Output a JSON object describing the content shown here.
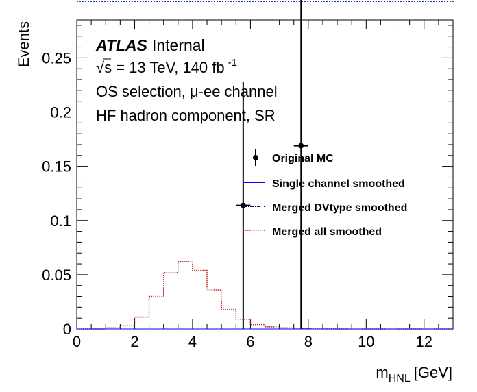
{
  "chart_data": {
    "type": "histogram",
    "xlabel_main": "m",
    "xlabel_sub": "HNL",
    "xlabel_unit": "[GeV]",
    "ylabel": "Events",
    "xlim": [
      0,
      13
    ],
    "ylim": [
      0,
      0.285
    ],
    "xticks": [
      0,
      2,
      4,
      6,
      8,
      10,
      12
    ],
    "yticks": [
      0,
      0.05,
      0.1,
      0.15,
      0.2,
      0.25
    ],
    "ytick_labels": [
      "0",
      "0.05",
      "0.1",
      "0.15",
      "0.2",
      "0.25"
    ],
    "bin_width": 0.5,
    "annotations": {
      "atlas": "ATLAS",
      "internal": "Internal",
      "energy": "√s = 13 TeV, 140 fb",
      "energy_sup": "-1",
      "selection": "OS selection,  μ-ee channel",
      "component": "HF hadron component, SR"
    },
    "legend": {
      "placement": "right",
      "entries": [
        {
          "label": "Original MC",
          "style": "marker"
        },
        {
          "label": "Single channel smoothed",
          "style": "solid",
          "color": "#0000ff"
        },
        {
          "label": "Merged DVtype smoothed",
          "style": "dashdot",
          "color": "#00007f"
        },
        {
          "label": "Merged all smoothed",
          "style": "dotted",
          "color": "#b22222"
        }
      ]
    },
    "series": [
      {
        "name": "Original MC",
        "kind": "points",
        "points": [
          {
            "x": 5.75,
            "y": 0.114,
            "xerr": 0.25,
            "yerr_up": 0.114,
            "yerr_down": 0.114
          },
          {
            "x": 7.75,
            "y": 0.169,
            "xerr": 0.25,
            "yerr_up": 0.169,
            "yerr_down": 0.169
          }
        ]
      },
      {
        "name": "Merged all smoothed",
        "kind": "step",
        "color": "#b22222",
        "bin_edges": [
          0,
          0.5,
          1,
          1.5,
          2,
          2.5,
          3,
          3.5,
          4,
          4.5,
          5,
          5.5,
          6,
          6.5,
          7,
          7.5,
          8,
          8.5,
          9,
          9.5,
          10,
          10.5,
          11,
          11.5,
          12,
          12.5,
          13
        ],
        "values": [
          0,
          0,
          0.001,
          0.003,
          0.011,
          0.03,
          0.052,
          0.062,
          0.054,
          0.036,
          0.018,
          0.009,
          0.004,
          0.002,
          0.001,
          0.0005,
          0.0002,
          0.0001,
          0,
          0,
          0,
          0,
          0,
          0,
          0,
          0
        ]
      }
    ],
    "colors": {
      "single": "#0000ff",
      "dvtype": "#00007f",
      "merged_all": "#b22222",
      "top_strip": "#1f3fbf"
    }
  }
}
